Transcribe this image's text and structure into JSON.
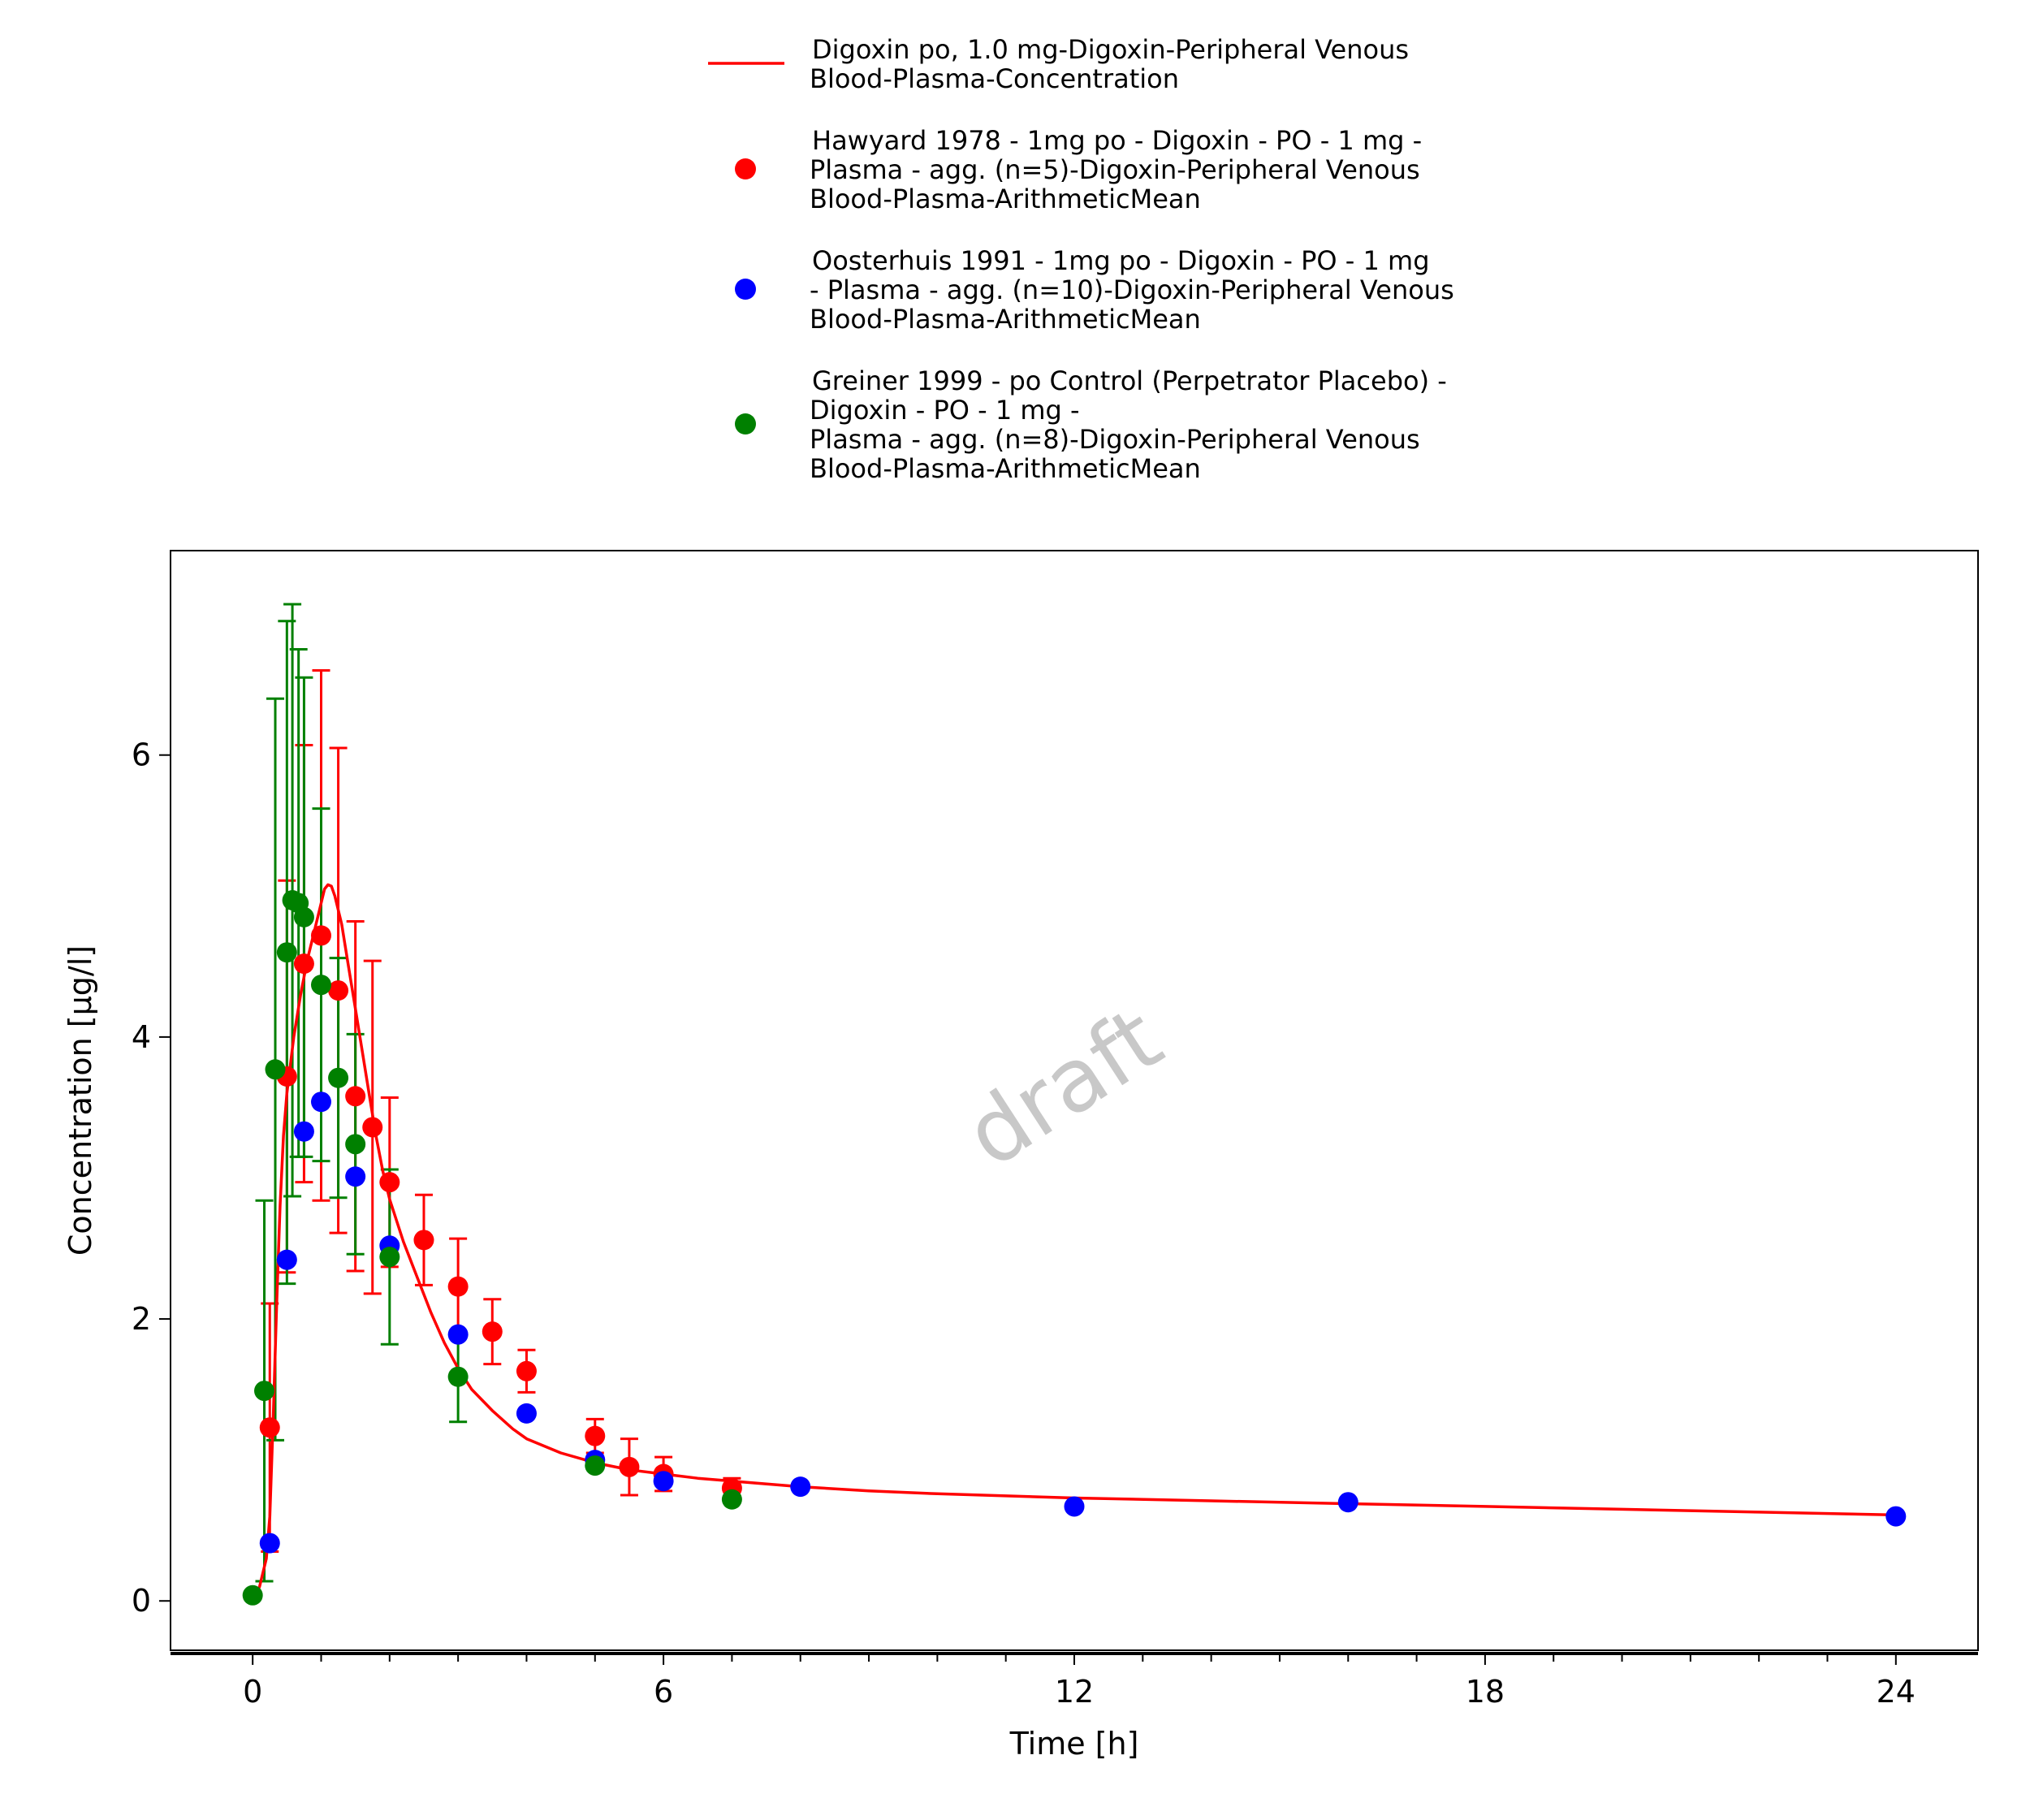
{
  "chart_data": {
    "type": "scatter",
    "title": "",
    "xlabel": "Time [h]",
    "ylabel": "Concentration [µg/l]",
    "xlim": [
      -1.2,
      25.2
    ],
    "ylim": [
      -0.35,
      7.45
    ],
    "x_ticks": [
      0,
      6,
      12,
      18,
      24
    ],
    "x_minor_ticks": [
      1,
      2,
      3,
      4,
      5,
      7,
      8,
      9,
      10,
      11,
      13,
      14,
      15,
      16,
      17,
      19,
      20,
      21,
      22,
      23
    ],
    "y_ticks": [
      0,
      2,
      4,
      6
    ],
    "grid": false,
    "legend_position": "top-center",
    "watermark": "draft",
    "series": [
      {
        "name": "Digoxin po, 1.0 mg-Digoxin-Peripheral Venous Blood-Plasma-Concentration",
        "legend_lines": [
          "Digoxin po, 1.0 mg-Digoxin-Peripheral Venous",
          "Blood-Plasma-Concentration"
        ],
        "kind": "line",
        "color": "#ff0000",
        "x": [
          0,
          0.1,
          0.2,
          0.25,
          0.3,
          0.35,
          0.4,
          0.45,
          0.5,
          0.6,
          0.7,
          0.8,
          0.9,
          1.0,
          1.05,
          1.1,
          1.15,
          1.2,
          1.3,
          1.4,
          1.5,
          1.6,
          1.7,
          1.8,
          1.9,
          2.0,
          2.2,
          2.4,
          2.6,
          2.8,
          3.0,
          3.2,
          3.5,
          3.8,
          4.0,
          4.5,
          5.0,
          5.5,
          6.0,
          6.5,
          7.0,
          8.0,
          9.0,
          10.0,
          12.0,
          14.0,
          16.0,
          18.0,
          20.0,
          22.0,
          24.0
        ],
        "y": [
          0,
          0.1,
          0.3,
          0.6,
          1.3,
          2.1,
          2.8,
          3.3,
          3.6,
          4.0,
          4.3,
          4.55,
          4.75,
          4.95,
          5.05,
          5.08,
          5.07,
          5.0,
          4.8,
          4.5,
          4.2,
          3.9,
          3.6,
          3.3,
          3.05,
          2.85,
          2.55,
          2.3,
          2.05,
          1.83,
          1.65,
          1.5,
          1.35,
          1.22,
          1.15,
          1.05,
          0.98,
          0.93,
          0.9,
          0.87,
          0.85,
          0.81,
          0.78,
          0.76,
          0.73,
          0.71,
          0.69,
          0.67,
          0.65,
          0.63,
          0.61
        ]
      },
      {
        "name": "Hawyard 1978 - 1mg po - Digoxin - PO - 1 mg - Plasma - agg. (n=5)-Digoxin-Peripheral Venous Blood-Plasma-ArithmeticMean",
        "legend_lines": [
          "Hawyard 1978 - 1mg po - Digoxin - PO - 1 mg -",
          "Plasma - agg. (n=5)-Digoxin-Peripheral Venous",
          "Blood-Plasma-ArithmeticMean"
        ],
        "kind": "points",
        "color": "#ff0000",
        "x": [
          0.25,
          0.5,
          0.75,
          1.0,
          1.25,
          1.5,
          1.75,
          2.0,
          2.5,
          3.0,
          3.5,
          4.0,
          5.0,
          5.5,
          6.0,
          7.0
        ],
        "y": [
          1.23,
          3.72,
          4.52,
          4.72,
          4.33,
          3.58,
          3.36,
          2.97,
          2.56,
          2.23,
          1.91,
          1.63,
          1.17,
          0.95,
          0.9,
          0.8
        ],
        "error": [
          0.88,
          1.39,
          1.55,
          1.88,
          1.72,
          1.24,
          1.18,
          0.6,
          0.32,
          0.34,
          0.23,
          0.15,
          0.12,
          0.2,
          0.12,
          0.07
        ]
      },
      {
        "name": "Oosterhuis 1991 - 1mg po - Digoxin - PO - 1 mg - Plasma - agg. (n=10)-Digoxin-Peripheral Venous Blood-Plasma-ArithmeticMean",
        "legend_lines": [
          "Oosterhuis 1991 - 1mg po - Digoxin - PO - 1 mg",
          "- Plasma - agg. (n=10)-Digoxin-Peripheral Venous",
          "Blood-Plasma-ArithmeticMean"
        ],
        "kind": "points",
        "color": "#0000ff",
        "x": [
          0.25,
          0.5,
          0.75,
          1.0,
          1.5,
          2.0,
          3.0,
          4.0,
          5.0,
          6.0,
          8.0,
          12.0,
          16.0,
          24.0
        ],
        "y": [
          0.41,
          2.42,
          3.33,
          3.54,
          3.01,
          2.52,
          1.89,
          1.33,
          1.0,
          0.85,
          0.81,
          0.67,
          0.7,
          0.6
        ]
      },
      {
        "name": "Greiner 1999 - po Control (Perpetrator Placebo) - Digoxin - PO - 1 mg - Plasma - agg. (n=8)-Digoxin-Peripheral Venous Blood-Plasma-ArithmeticMean",
        "legend_lines": [
          "Greiner 1999 - po Control (Perpetrator Placebo) -",
          "Digoxin - PO - 1 mg -",
          "Plasma - agg. (n=8)-Digoxin-Peripheral Venous",
          "Blood-Plasma-ArithmeticMean"
        ],
        "kind": "points",
        "color": "#008000",
        "x": [
          0.0,
          0.17,
          0.33,
          0.5,
          0.58,
          0.67,
          0.75,
          1.0,
          1.25,
          1.5,
          2.0,
          3.0,
          5.0,
          7.0
        ],
        "y": [
          0.04,
          1.49,
          3.77,
          4.6,
          4.97,
          4.95,
          4.85,
          4.37,
          3.71,
          3.24,
          2.44,
          1.59,
          0.96,
          0.72
        ],
        "error": [
          0.0,
          1.35,
          2.63,
          2.35,
          2.1,
          1.8,
          1.7,
          1.25,
          0.85,
          0.78,
          0.62,
          0.32,
          0.0,
          0.0
        ]
      }
    ]
  }
}
